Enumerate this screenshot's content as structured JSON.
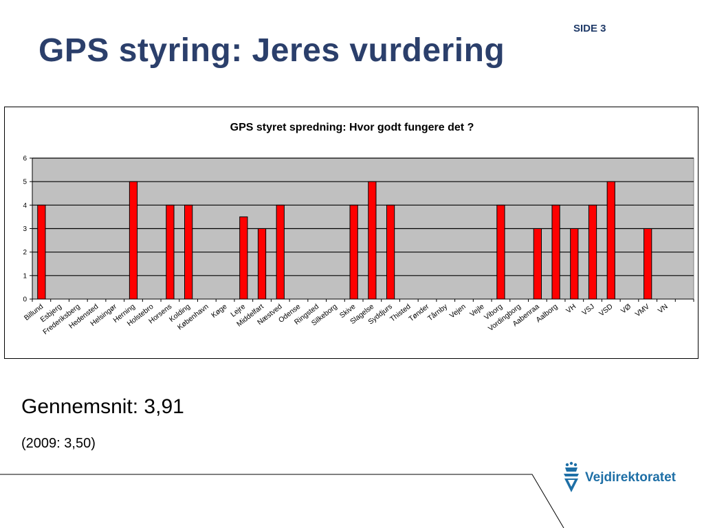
{
  "slide": {
    "page_label": "SIDE 3",
    "title": "GPS styring: Jeres vurdering",
    "average": "Gennemsnit: 3,91",
    "previous": "(2009: 3,50)"
  },
  "logo": {
    "name": "Vejdirektoratet",
    "icon": "crown-v-emblem-icon",
    "color": "#1e6fa6"
  },
  "colors": {
    "title": "#2b3f6b",
    "bar": "#ff0000",
    "plot_background": "#c0c0c0"
  },
  "chart_data": {
    "type": "bar",
    "title": "GPS styret spredning: Hvor godt fungere det ?",
    "xlabel": "",
    "ylabel": "",
    "ylim": [
      0,
      6
    ],
    "yticks": [
      0,
      1,
      2,
      3,
      4,
      5,
      6
    ],
    "grid": true,
    "legend": "none",
    "categories": [
      "Billund",
      "Esbjerg",
      "Frederiksberg",
      "Hedensted",
      "Helsingør",
      "Herning",
      "Holstebro",
      "Horsens",
      "Kolding",
      "København",
      "Køge",
      "Lejre",
      "Middelfart",
      "Næstved",
      "Odense",
      "Ringsted",
      "Silkeborg",
      "Skive",
      "Slagelse",
      "Syddjurs",
      "Thisted",
      "Tønder",
      "Tårnby",
      "Vejen",
      "Vejle",
      "Viborg",
      "Vordingborg",
      "Aabenraa",
      "Aalborg",
      "VH",
      "VSJ",
      "VSD",
      "VØ",
      "VMV",
      "VN"
    ],
    "values": [
      4,
      null,
      null,
      null,
      null,
      5,
      null,
      4,
      4,
      null,
      null,
      3.5,
      3,
      4,
      null,
      null,
      null,
      4,
      5,
      4,
      null,
      null,
      null,
      null,
      null,
      4,
      null,
      3,
      4,
      3,
      4,
      5,
      null,
      3,
      null
    ]
  }
}
